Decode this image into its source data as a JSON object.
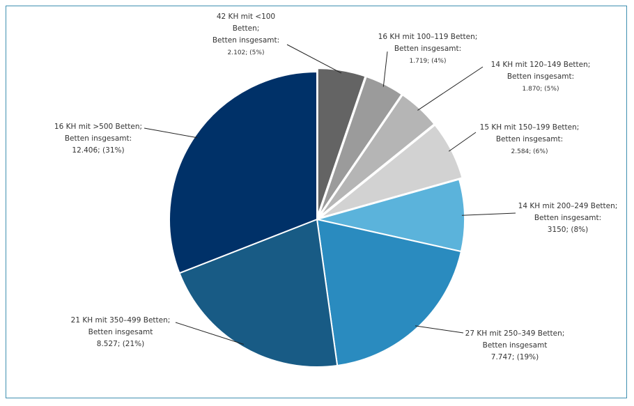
{
  "chart_data": {
    "type": "pie",
    "slices": [
      {
        "label_lines": [
          "42 KH mit <100",
          "Betten;",
          "Betten insgesamt:",
          "2.102; (5%)"
        ],
        "value": 2102,
        "percent": 5,
        "color": "#646464",
        "exploded": true
      },
      {
        "label_lines": [
          "16 KH mit 100–119 Betten;",
          "Betten insgesamt:",
          "1.719; (4%)"
        ],
        "value": 1719,
        "percent": 4,
        "color": "#9b9b9b",
        "exploded": true
      },
      {
        "label_lines": [
          "14 KH mit 120–149 Betten;",
          "Betten insgesamt:",
          "1.870; (5%)"
        ],
        "value": 1870,
        "percent": 5,
        "color": "#b5b5b5",
        "exploded": true
      },
      {
        "label_lines": [
          "15 KH mit 150–199 Betten;",
          "Betten insgesamt:",
          "2.584; (6%)"
        ],
        "value": 2584,
        "percent": 6,
        "color": "#d2d2d2",
        "exploded": true
      },
      {
        "label_lines": [
          "14 KH mit 200–249 Betten;",
          "Betten insgesamt:",
          "3150; (8%)"
        ],
        "value": 3150,
        "percent": 8,
        "color": "#5bb3db",
        "exploded": false
      },
      {
        "label_lines": [
          "27 KH mit 250–349 Betten;",
          "Betten insgesamt",
          "7.747; (19%)"
        ],
        "value": 7747,
        "percent": 19,
        "color": "#2a8bbf",
        "exploded": false
      },
      {
        "label_lines": [
          "21  KH mit 350–499 Betten;",
          "Betten insgesamt",
          "8.527; (21%)"
        ],
        "value": 8527,
        "percent": 21,
        "color": "#185b85",
        "exploded": false
      },
      {
        "label_lines": [
          "16 KH mit >500 Betten;",
          "Betten insgesamt:",
          "12.406; (31%)"
        ],
        "value": 12406,
        "percent": 31,
        "color": "#003168",
        "exploded": false
      }
    ]
  }
}
